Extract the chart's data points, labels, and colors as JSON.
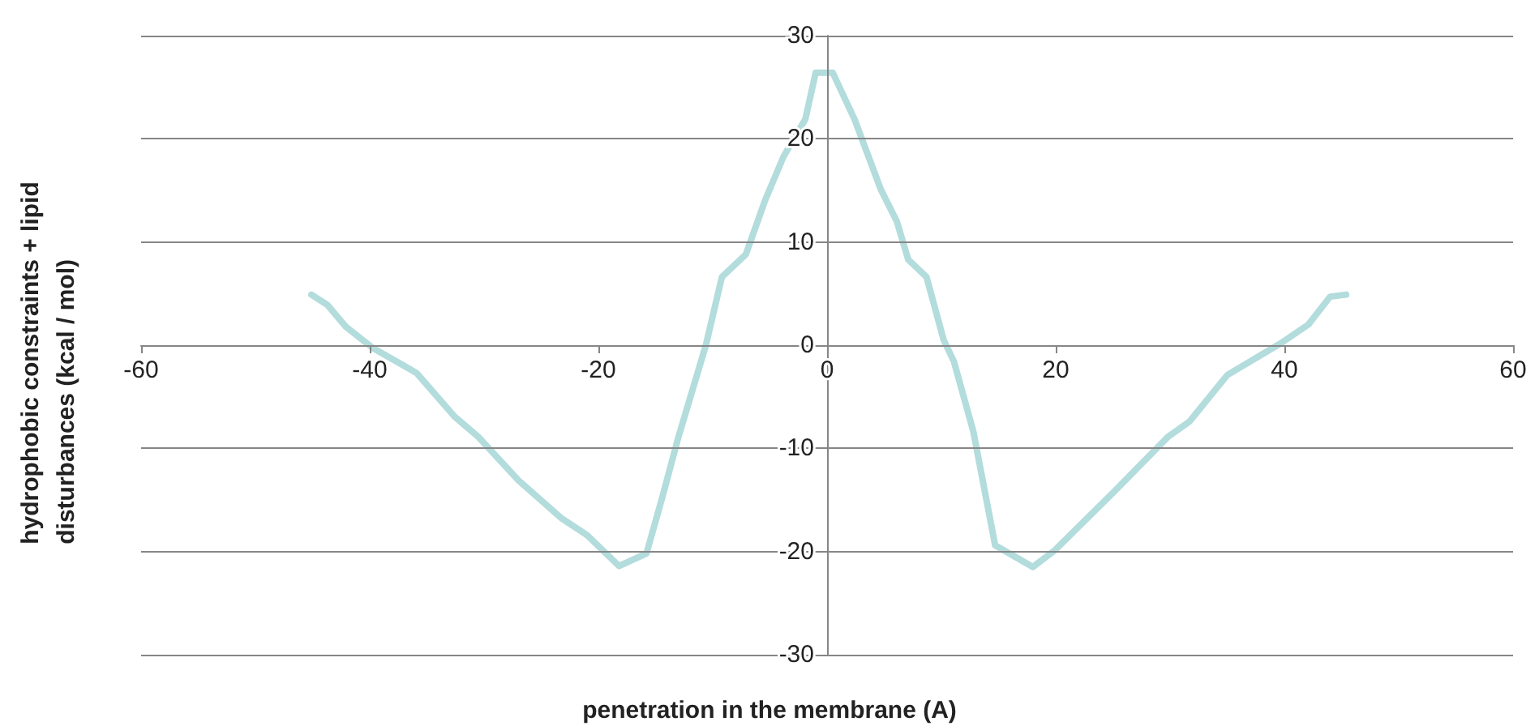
{
  "chart_data": {
    "type": "line",
    "xlabel": "penetration in the membrane (A)",
    "ylabel": "hydrophobic constraints + lipid\ndisturbances (kcal / mol)",
    "xlim": [
      -60,
      60
    ],
    "xticks": [
      -60,
      -40,
      -20,
      0,
      20,
      40,
      60
    ],
    "ylim": [
      -30,
      30
    ],
    "yticks": [
      -30,
      -20,
      -10,
      0,
      10,
      20,
      30
    ],
    "grid": "y",
    "marker": "none",
    "line_style": "solid",
    "series": [
      {
        "color": "#b3dcdc",
        "x": [
          -45.1,
          -43.7,
          -42.1,
          -39.7,
          -35.9,
          -32.6,
          -30.5,
          -27.0,
          -23.2,
          -21.0,
          -18.2,
          -15.8,
          -14.4,
          -13.0,
          -10.6,
          -9.2,
          -7.1,
          -5.4,
          -3.8,
          -1.9,
          -1.0,
          0.5,
          2.4,
          4.7,
          6.1,
          7.1,
          8.7,
          10.2,
          11.1,
          12.8,
          14.7,
          18.0,
          19.9,
          25.1,
          29.8,
          31.7,
          35.0,
          39.7,
          42.1,
          44.0,
          45.4
        ],
        "values": [
          4.9,
          3.9,
          1.8,
          -0.3,
          -2.7,
          -6.9,
          -8.9,
          -13.1,
          -16.8,
          -18.4,
          -21.4,
          -20.2,
          -14.7,
          -8.9,
          0,
          6.6,
          8.8,
          14.1,
          18.3,
          21.9,
          26.4,
          26.4,
          21.9,
          15.1,
          12.0,
          8.3,
          6.6,
          0.5,
          -1.6,
          -8.4,
          -19.4,
          -21.5,
          -19.9,
          -14.2,
          -8.9,
          -7.4,
          -2.9,
          0.2,
          2.0,
          4.7,
          4.9
        ]
      }
    ]
  }
}
